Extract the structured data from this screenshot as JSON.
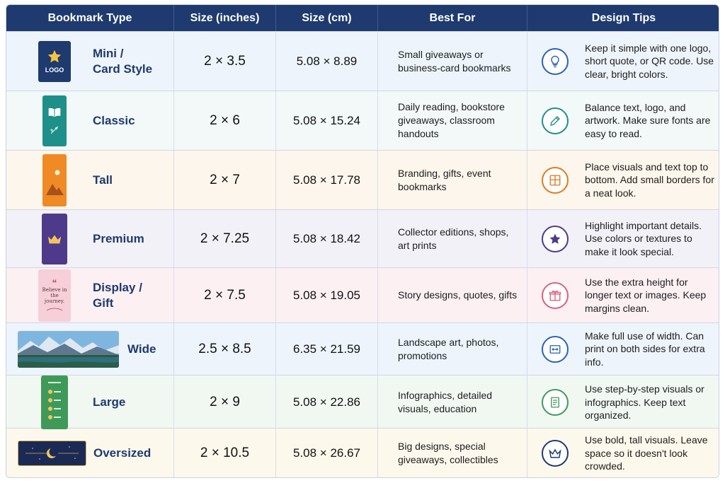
{
  "header": {
    "col_type": "Bookmark Type",
    "col_inches": "Size (inches)",
    "col_cm": "Size (cm)",
    "col_best": "Best For",
    "col_tips": "Design Tips"
  },
  "colors": {
    "header_bg": "#1e3a6e",
    "type_text": "#1e3a6e"
  },
  "rows": [
    {
      "type": "Mini /\nCard Style",
      "inches": "2 × 3.5",
      "cm": "5.08 × 8.89",
      "best": "Small giveaways or business-card bookmarks",
      "tip": "Keep it simple with one logo, short quote, or QR code. Use clear, bright colors.",
      "icon": "lightbulb-icon",
      "icon_color": "#2a62b8",
      "bg": "#eef4fb",
      "thumb_text": "LOGO"
    },
    {
      "type": "Classic",
      "inches": "2 × 6",
      "cm": "5.08 × 15.24",
      "best": "Daily reading, bookstore giveaways, classroom handouts",
      "tip": "Balance text, logo, and artwork. Make sure fonts are easy to read.",
      "icon": "pencil-icon",
      "icon_color": "#1f8f8a",
      "bg": "#f3f8f8"
    },
    {
      "type": "Tall",
      "inches": "2 × 7",
      "cm": "5.08 × 17.78",
      "best": "Branding, gifts, event bookmarks",
      "tip": "Place visuals and text top to bottom. Add small borders for a neat look.",
      "icon": "layout-icon",
      "icon_color": "#e07b1c",
      "bg": "#fdf6ec"
    },
    {
      "type": "Premium",
      "inches": "2 × 7.25",
      "cm": "5.08 × 18.42",
      "best": "Collector editions, shops, art prints",
      "tip": "Highlight important details. Use colors or textures to make it look special.",
      "icon": "star-icon",
      "icon_color": "#4e3a8a",
      "bg": "#f3f1f8"
    },
    {
      "type": "Display /\nGift",
      "inches": "2 × 7.5",
      "cm": "5.08 × 19.05",
      "best": "Story designs, quotes, gifts",
      "tip": "Use the extra height for longer text or images. Keep margins clean.",
      "icon": "gift-icon",
      "icon_color": "#d9627f",
      "bg": "#fcf0f3",
      "thumb_text": "Believe in the journey."
    },
    {
      "type": "Wide",
      "inches": "2.5 × 8.5",
      "cm": "6.35 × 21.59",
      "best": "Landscape art, photos, promotions",
      "tip": "Make full use of width. Can print on both sides for extra info.",
      "icon": "width-arrows-icon",
      "icon_color": "#2a62b8",
      "bg": "#eef4fb"
    },
    {
      "type": "Large",
      "inches": "2 × 9",
      "cm": "5.08 × 22.86",
      "best": "Infographics, detailed visuals, education",
      "tip": "Use step-by-step visuals or infographics. Keep text organized.",
      "icon": "document-icon",
      "icon_color": "#3f9a5a",
      "bg": "#f1f8f2"
    },
    {
      "type": "Oversized",
      "inches": "2 × 10.5",
      "cm": "5.08 × 26.67",
      "best": "Big designs, special giveaways, collectibles",
      "tip": "Use bold, tall visuals. Leave space so it doesn't look crowded.",
      "icon": "crown-icon",
      "icon_color": "#1e3a6e",
      "bg": "#fdf8ec"
    }
  ]
}
